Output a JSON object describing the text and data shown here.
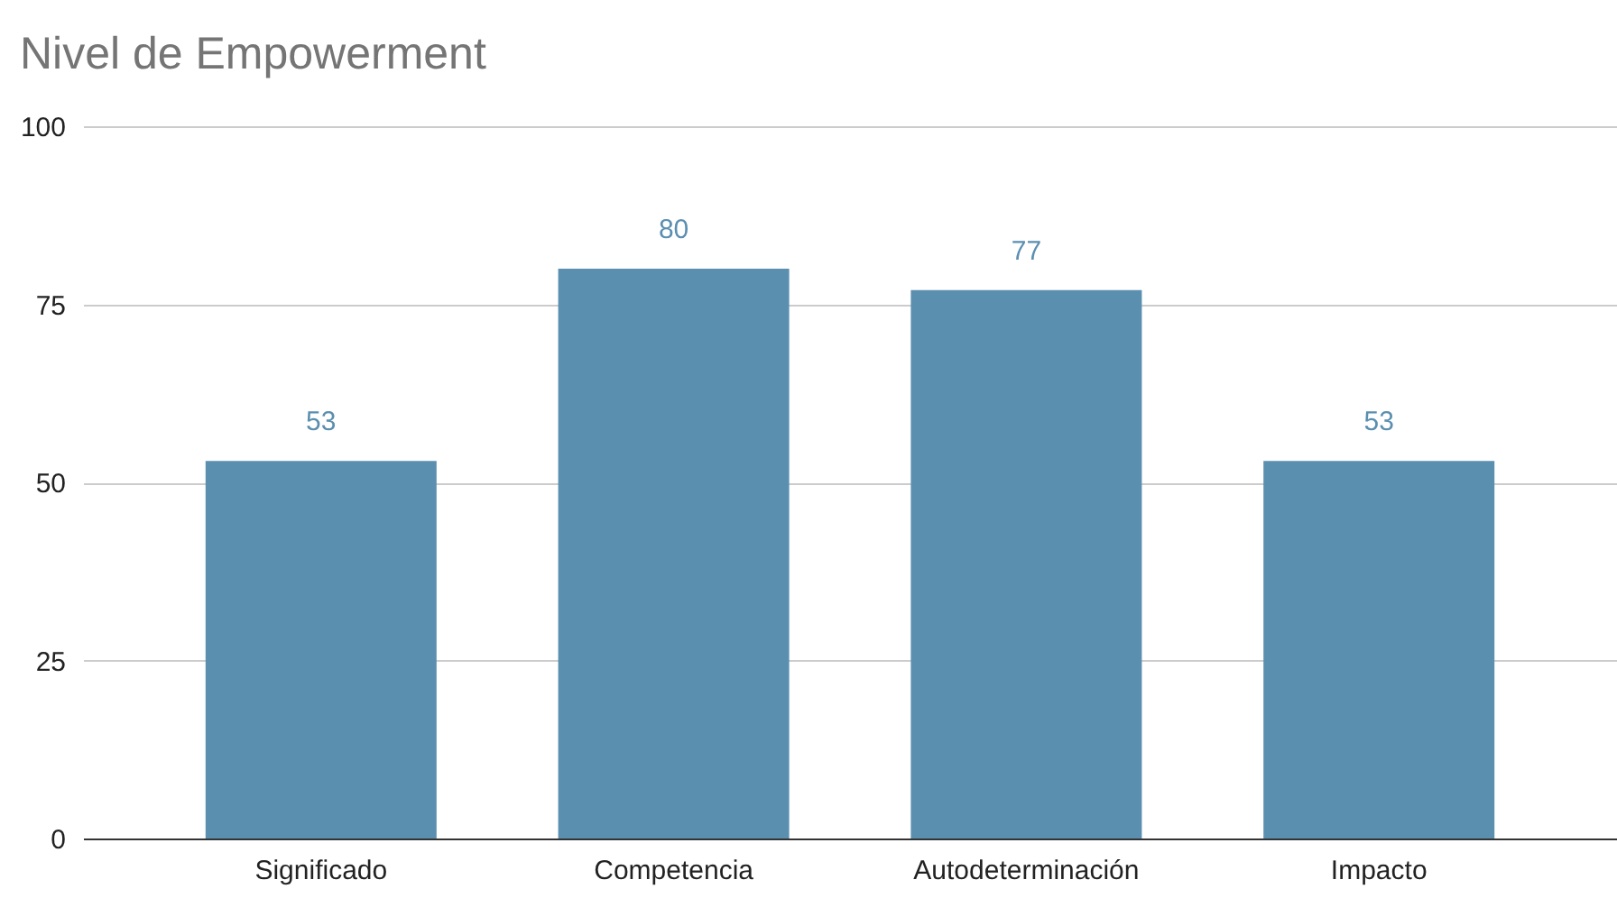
{
  "chart_data": {
    "type": "bar",
    "title": "Nivel de Empowerment",
    "categories": [
      "Significado",
      "Competencia",
      "Autodeterminación",
      "Impacto"
    ],
    "values": [
      53,
      80,
      77,
      53
    ],
    "color": "#5b8fb0",
    "ylim": [
      0,
      100
    ],
    "yticks": [
      0,
      25,
      50,
      75,
      100
    ],
    "grid": "y",
    "data_labels": true
  }
}
